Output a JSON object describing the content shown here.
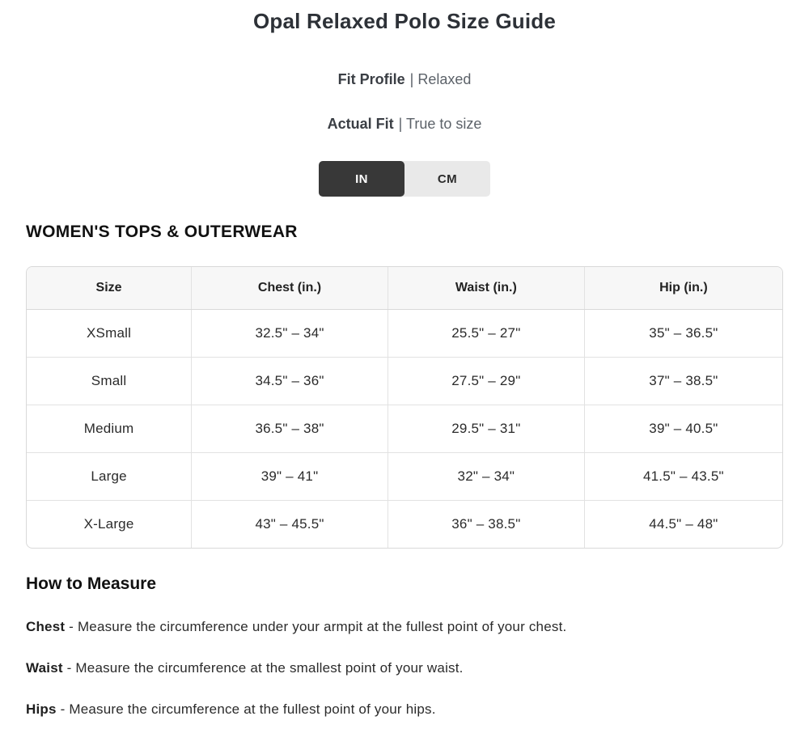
{
  "page": {
    "title": "Opal Relaxed Polo Size Guide",
    "fit_profile_label": "Fit Profile",
    "fit_profile_value": "| Relaxed",
    "actual_fit_label": "Actual Fit",
    "actual_fit_value": "| True to size"
  },
  "unit_toggle": {
    "in_label": "IN",
    "cm_label": "CM",
    "selected": "IN",
    "active_bg": "#383838",
    "active_text": "#ffffff",
    "inactive_bg": "#e9e9e9",
    "inactive_text": "#2b2b2b"
  },
  "section": {
    "heading": "WOMEN'S TOPS & OUTERWEAR"
  },
  "size_table": {
    "header_bg": "#f7f7f7",
    "border_color": "#d9d9d9",
    "columns": [
      "Size",
      "Chest (in.)",
      "Waist (in.)",
      "Hip (in.)"
    ],
    "rows": [
      [
        "XSmall",
        "32.5\" – 34\"",
        "25.5\" – 27\"",
        "35\" – 36.5\""
      ],
      [
        "Small",
        "34.5\" – 36\"",
        "27.5\" – 29\"",
        "37\" – 38.5\""
      ],
      [
        "Medium",
        "36.5\" – 38\"",
        "29.5\" – 31\"",
        "39\" – 40.5\""
      ],
      [
        "Large",
        "39\" – 41\"",
        "32\" – 34\"",
        "41.5\" – 43.5\""
      ],
      [
        "X-Large",
        "43\" – 45.5\"",
        "36\" – 38.5\"",
        "44.5\" – 48\""
      ]
    ]
  },
  "how_to_measure": {
    "heading": "How to Measure",
    "items": [
      {
        "label": "Chest",
        "text": " - Measure the circumference under your armpit at the fullest point of your chest."
      },
      {
        "label": "Waist",
        "text": " - Measure the circumference at the smallest point of your waist."
      },
      {
        "label": "Hips",
        "text": " - Measure the circumference at the fullest point of your hips."
      }
    ]
  }
}
